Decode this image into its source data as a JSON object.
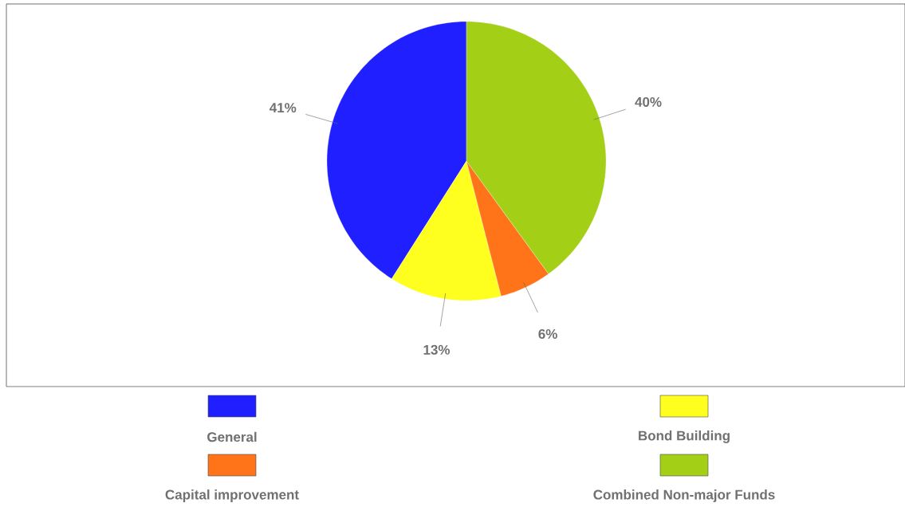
{
  "chart_data": {
    "type": "pie",
    "categories": [
      "General",
      "Bond Building",
      "Capital improvement",
      "Combined Non-major Funds"
    ],
    "values": [
      41,
      13,
      6,
      40
    ],
    "value_labels": [
      "41%",
      "13%",
      "6%",
      "40%"
    ],
    "colors": [
      "#1f1fff",
      "#ffff1f",
      "#ff7319",
      "#a3cf16"
    ],
    "legend": "bottom"
  }
}
